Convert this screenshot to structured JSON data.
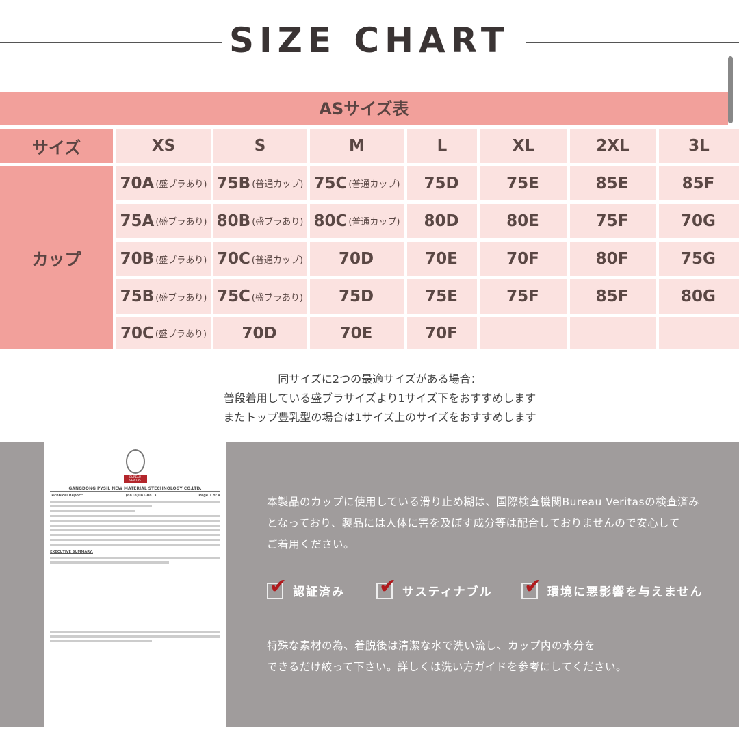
{
  "header": {
    "title": "SIZE CHART"
  },
  "table": {
    "title": "ASサイズ表",
    "size_label": "サイズ",
    "cup_label": "カップ",
    "sizes": [
      "XS",
      "S",
      "M",
      "L",
      "XL",
      "2XL",
      "3L"
    ],
    "rows": [
      [
        [
          "70A",
          "(盛ブラあり)"
        ],
        [
          "75B",
          "(普通カップ)"
        ],
        [
          "75C",
          "(普通カップ)"
        ],
        [
          "75D",
          ""
        ],
        [
          "75E",
          ""
        ],
        [
          "85E",
          ""
        ],
        [
          "85F",
          ""
        ]
      ],
      [
        [
          "75A",
          "(盛ブラあり)"
        ],
        [
          "80B",
          "(盛ブラあり)"
        ],
        [
          "80C",
          "(普通カップ)"
        ],
        [
          "80D",
          ""
        ],
        [
          "80E",
          ""
        ],
        [
          "75F",
          ""
        ],
        [
          "70G",
          ""
        ]
      ],
      [
        [
          "70B",
          "(盛ブラあり)"
        ],
        [
          "70C",
          "(普通カップ)"
        ],
        [
          "70D",
          ""
        ],
        [
          "70E",
          ""
        ],
        [
          "70F",
          ""
        ],
        [
          "80F",
          ""
        ],
        [
          "75G",
          ""
        ]
      ],
      [
        [
          "75B",
          "(盛ブラあり)"
        ],
        [
          "75C",
          "(盛ブラあり)"
        ],
        [
          "75D",
          ""
        ],
        [
          "75E",
          ""
        ],
        [
          "75F",
          ""
        ],
        [
          "85F",
          ""
        ],
        [
          "80G",
          ""
        ]
      ],
      [
        [
          "70C",
          "(盛ブラあり)"
        ],
        [
          "70D",
          ""
        ],
        [
          "70E",
          ""
        ],
        [
          "70F",
          ""
        ],
        [
          "",
          ""
        ],
        [
          "",
          ""
        ],
        [
          "",
          ""
        ]
      ]
    ]
  },
  "notes": [
    "同サイズに2つの最適サイズがある場合：",
    "普段着用している盛ブラサイズより1サイズ下をおすすめします",
    "またトップ豊乳型の場合は1サイズ上のサイズをおすすめします"
  ],
  "certificate": {
    "brand": "BUREAU VERITAS",
    "company": "GANGDONG PYSIL NEW MATERIAL STECHNOLOGY CO.LTD.",
    "report": "Technical Report:",
    "report_no": "(8818)081-0813",
    "page": "Page 1 of 4",
    "summary": "EXECUTIVE SUMMARY:"
  },
  "info": {
    "para1": [
      "本製品のカップに使用している滑り止め糊は、国際検査機関Bureau Veritasの検査済み",
      "となっており、製品には人体に害を及ぼす成分等は配合しておりませんので安心して",
      "ご着用ください。"
    ],
    "badges": [
      "認証済み",
      "サスティナブル",
      "環境に悪影響を与えません"
    ],
    "para2": [
      "特殊な素材の為、着脱後は清潔な水で洗い流し、カップ内の水分を",
      "できるだけ絞って下さい。詳しくは洗い方ガイドを参考にしてください。"
    ],
    "check_color": "#b01a1d"
  }
}
